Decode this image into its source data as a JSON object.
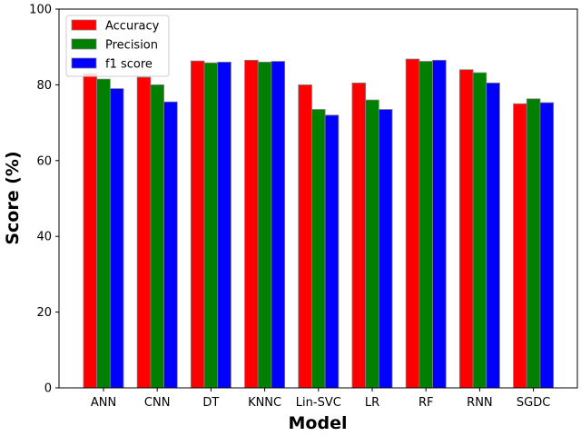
{
  "chart_data": {
    "type": "bar",
    "title": "",
    "xlabel": "Model",
    "ylabel": "Score (%)",
    "ylim": [
      0,
      100
    ],
    "yticks": [
      0,
      20,
      40,
      60,
      80,
      100
    ],
    "grid": false,
    "legend_position": "top-left",
    "categories": [
      "ANN",
      "CNN",
      "DT",
      "KNNC",
      "Lin-SVC",
      "LR",
      "RF",
      "RNN",
      "SGDC"
    ],
    "series": [
      {
        "name": "Accuracy",
        "color": "#ff0000",
        "values": [
          83.0,
          82.0,
          86.3,
          86.5,
          80.0,
          80.5,
          86.8,
          84.0,
          75.0
        ]
      },
      {
        "name": "Precision",
        "color": "#008000",
        "values": [
          81.5,
          80.0,
          85.8,
          86.0,
          73.5,
          76.0,
          86.2,
          83.2,
          76.3
        ]
      },
      {
        "name": "f1 score",
        "color": "#0000ff",
        "values": [
          79.0,
          75.5,
          86.0,
          86.2,
          72.0,
          73.5,
          86.5,
          80.5,
          75.3
        ]
      }
    ]
  }
}
